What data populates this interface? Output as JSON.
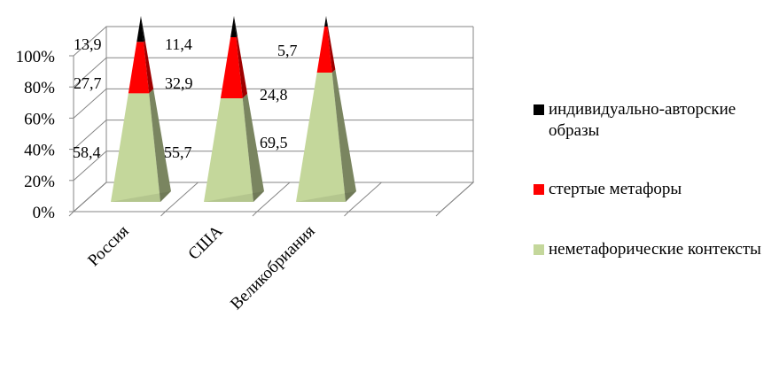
{
  "chart_data": {
    "type": "bar",
    "stacked": true,
    "percent": true,
    "shape": "3d-pyramid",
    "categories": [
      "Россия",
      "США",
      "Великобриания"
    ],
    "series": [
      {
        "name": "неметафорические контексты",
        "values": [
          58.4,
          55.7,
          69.5
        ],
        "color": "#C4D79B"
      },
      {
        "name": "стертые метафоры",
        "values": [
          27.7,
          32.9,
          24.8
        ],
        "color": "#FF0000"
      },
      {
        "name": "индивидуально-авторские образы",
        "values": [
          13.9,
          11.4,
          5.7
        ],
        "color": "#000000"
      }
    ],
    "data_labels": [
      [
        "58,4",
        "55,7",
        "69,5"
      ],
      [
        "27,7",
        "32,9",
        "24,8"
      ],
      [
        "13,9",
        "11,4",
        "5,7"
      ]
    ],
    "yticks": [
      "0%",
      "20%",
      "40%",
      "60%",
      "80%",
      "100%"
    ],
    "ylim": [
      0,
      100
    ],
    "grid": true,
    "legend_position": "right"
  }
}
